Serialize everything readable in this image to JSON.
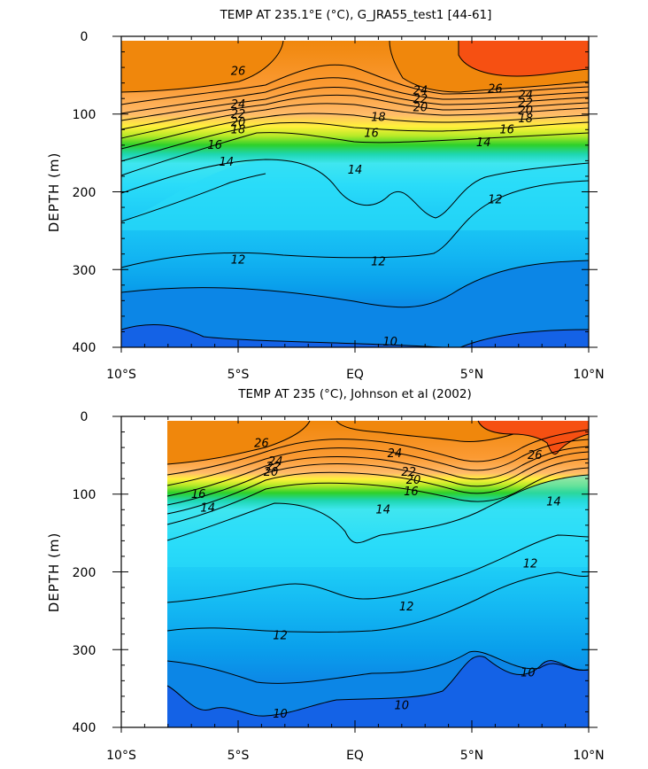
{
  "chart_data": [
    {
      "type": "contour",
      "title": "TEMP AT 235.1°E (°C), G_JRA55_test1 [44-61]",
      "xlabel": "",
      "ylabel": "DEPTH (m)",
      "x_ticks": [
        "10°S",
        "5°S",
        "EQ",
        "5°N",
        "10°N"
      ],
      "y_ticks": [
        "0",
        "100",
        "200",
        "300",
        "400"
      ],
      "xlim": [
        -10,
        10
      ],
      "ylim": [
        0,
        400
      ],
      "y_reversed": true,
      "data_x_start": -10,
      "contour_labels": [
        {
          "text": "26",
          "lat": -5,
          "depth": 45
        },
        {
          "text": "24",
          "lat": -5,
          "depth": 88
        },
        {
          "text": "22",
          "lat": -5,
          "depth": 100
        },
        {
          "text": "20",
          "lat": -5,
          "depth": 111
        },
        {
          "text": "18",
          "lat": -5,
          "depth": 120
        },
        {
          "text": "16",
          "lat": -6,
          "depth": 140
        },
        {
          "text": "14",
          "lat": -5.5,
          "depth": 162
        },
        {
          "text": "14",
          "lat": 0,
          "depth": 172
        },
        {
          "text": "16",
          "lat": 0.7,
          "depth": 125
        },
        {
          "text": "18",
          "lat": 1,
          "depth": 104
        },
        {
          "text": "20",
          "lat": 2.8,
          "depth": 92
        },
        {
          "text": "22",
          "lat": 2.8,
          "depth": 81
        },
        {
          "text": "24",
          "lat": 2.8,
          "depth": 70
        },
        {
          "text": "26",
          "lat": 6,
          "depth": 68
        },
        {
          "text": "24",
          "lat": 7.3,
          "depth": 76
        },
        {
          "text": "22",
          "lat": 7.3,
          "depth": 86
        },
        {
          "text": "20",
          "lat": 7.3,
          "depth": 96
        },
        {
          "text": "18",
          "lat": 7.3,
          "depth": 106
        },
        {
          "text": "16",
          "lat": 6.5,
          "depth": 120
        },
        {
          "text": "14",
          "lat": 5.5,
          "depth": 137
        },
        {
          "text": "12",
          "lat": 6,
          "depth": 210
        },
        {
          "text": "12",
          "lat": -5,
          "depth": 288
        },
        {
          "text": "12",
          "lat": 1,
          "depth": 290
        },
        {
          "text": "10",
          "lat": 1.5,
          "depth": 393
        }
      ]
    },
    {
      "type": "contour",
      "title": "TEMP AT 235 (°C), Johnson et al (2002)",
      "xlabel": "",
      "ylabel": "DEPTH (m)",
      "x_ticks": [
        "10°S",
        "5°S",
        "EQ",
        "5°N",
        "10°N"
      ],
      "y_ticks": [
        "0",
        "100",
        "200",
        "300",
        "400"
      ],
      "xlim": [
        -10,
        10
      ],
      "ylim": [
        0,
        400
      ],
      "y_reversed": true,
      "data_x_start": -8,
      "contour_labels": [
        {
          "text": "26",
          "lat": -4,
          "depth": 35
        },
        {
          "text": "24",
          "lat": -3.4,
          "depth": 58
        },
        {
          "text": "22",
          "lat": -3.5,
          "depth": 65
        },
        {
          "text": "20",
          "lat": -3.6,
          "depth": 72
        },
        {
          "text": "16",
          "lat": -6.7,
          "depth": 100
        },
        {
          "text": "14",
          "lat": -6.3,
          "depth": 118
        },
        {
          "text": "24",
          "lat": 1.7,
          "depth": 48
        },
        {
          "text": "22",
          "lat": 2.3,
          "depth": 72
        },
        {
          "text": "20",
          "lat": 2.5,
          "depth": 82
        },
        {
          "text": "16",
          "lat": 2.4,
          "depth": 97
        },
        {
          "text": "14",
          "lat": 1.2,
          "depth": 120
        },
        {
          "text": "26",
          "lat": 7.7,
          "depth": 50
        },
        {
          "text": "14",
          "lat": 8.5,
          "depth": 110
        },
        {
          "text": "12",
          "lat": 7.5,
          "depth": 190
        },
        {
          "text": "12",
          "lat": 2.2,
          "depth": 245
        },
        {
          "text": "12",
          "lat": -3.2,
          "depth": 282
        },
        {
          "text": "10",
          "lat": 7.4,
          "depth": 330
        },
        {
          "text": "10",
          "lat": 2,
          "depth": 372
        },
        {
          "text": "10",
          "lat": -3.2,
          "depth": 383
        }
      ]
    }
  ]
}
